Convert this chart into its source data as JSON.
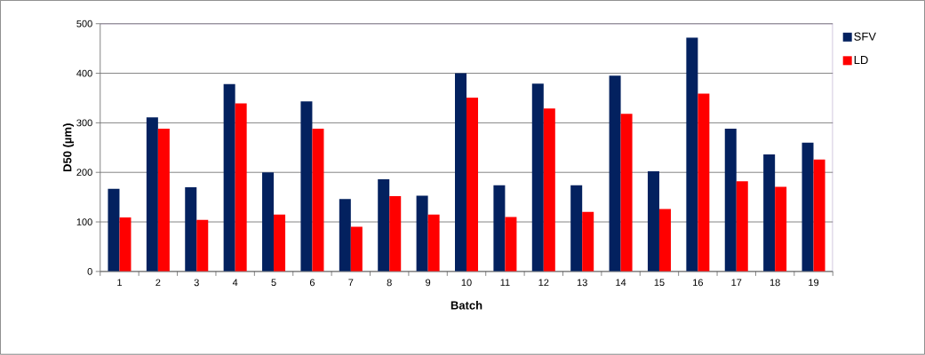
{
  "chart_data": {
    "type": "bar",
    "xlabel": "Batch",
    "ylabel": "D50 (µm)",
    "categories": [
      "1",
      "2",
      "3",
      "4",
      "5",
      "6",
      "7",
      "8",
      "9",
      "10",
      "11",
      "12",
      "13",
      "14",
      "15",
      "16",
      "17",
      "18",
      "19"
    ],
    "series": [
      {
        "name": "SFV",
        "color": "#03215f",
        "values": [
          167,
          311,
          170,
          378,
          200,
          343,
          146,
          186,
          153,
          400,
          174,
          379,
          174,
          395,
          202,
          472,
          288,
          236,
          260
        ]
      },
      {
        "name": "LD",
        "color": "#ff0000",
        "values": [
          109,
          288,
          104,
          339,
          115,
          288,
          90,
          152,
          115,
          351,
          110,
          329,
          120,
          318,
          126,
          359,
          182,
          171,
          226
        ]
      }
    ],
    "ylim": [
      0,
      500
    ],
    "yticks": [
      0,
      100,
      200,
      300,
      400,
      500
    ],
    "grid": "y",
    "legend": "top right"
  }
}
